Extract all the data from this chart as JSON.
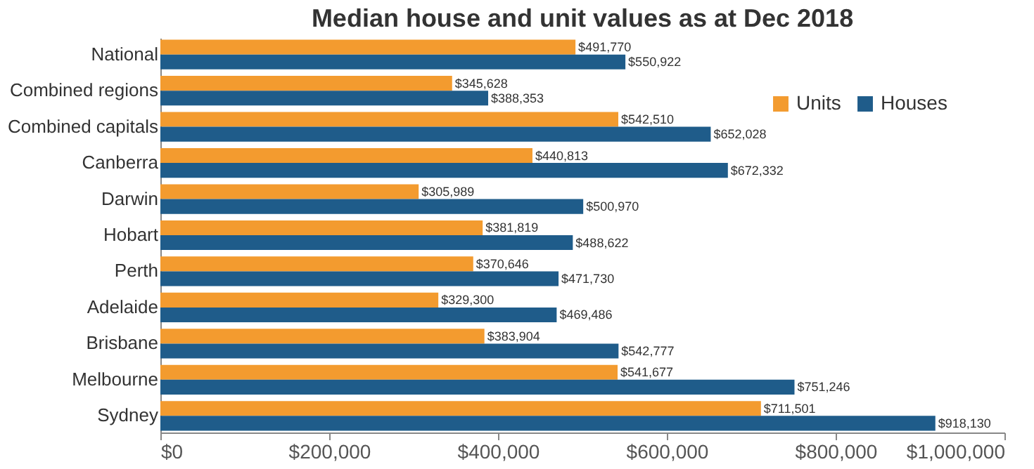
{
  "chart_data": {
    "type": "bar",
    "orientation": "horizontal",
    "title": "Median house and unit values as at Dec 2018",
    "categories": [
      "National",
      "Combined regions",
      "Combined capitals",
      "Canberra",
      "Darwin",
      "Hobart",
      "Perth",
      "Adelaide",
      "Brisbane",
      "Melbourne",
      "Sydney"
    ],
    "series": [
      {
        "name": "Units",
        "color": "#f39b2f",
        "values": [
          491770,
          345628,
          542510,
          440813,
          305989,
          381819,
          370646,
          329300,
          383904,
          541677,
          711501
        ],
        "value_labels": [
          "$491,770",
          "$345,628",
          "$542,510",
          "$440,813",
          "$305,989",
          "$381,819",
          "$370,646",
          "$329,300",
          "$383,904",
          "$541,677",
          "$711,501"
        ]
      },
      {
        "name": "Houses",
        "color": "#1f5c8a",
        "values": [
          550922,
          388353,
          652028,
          672332,
          500970,
          488622,
          471730,
          469486,
          542777,
          751246,
          918130
        ],
        "value_labels": [
          "$550,922",
          "$388,353",
          "$652,028",
          "$672,332",
          "$500,970",
          "$488,622",
          "$471,730",
          "$469,486",
          "$542,777",
          "$751,246",
          "$918,130"
        ]
      }
    ],
    "xlim": [
      0,
      1000000
    ],
    "xticks": [
      {
        "value": 0,
        "label": "$0"
      },
      {
        "value": 200000,
        "label": "$200,000"
      },
      {
        "value": 400000,
        "label": "$400,000"
      },
      {
        "value": 600000,
        "label": "$600,000"
      },
      {
        "value": 800000,
        "label": "$800,000"
      },
      {
        "value": 1000000,
        "label": "$1,000,000"
      }
    ],
    "legend": "top right",
    "grid": false
  }
}
